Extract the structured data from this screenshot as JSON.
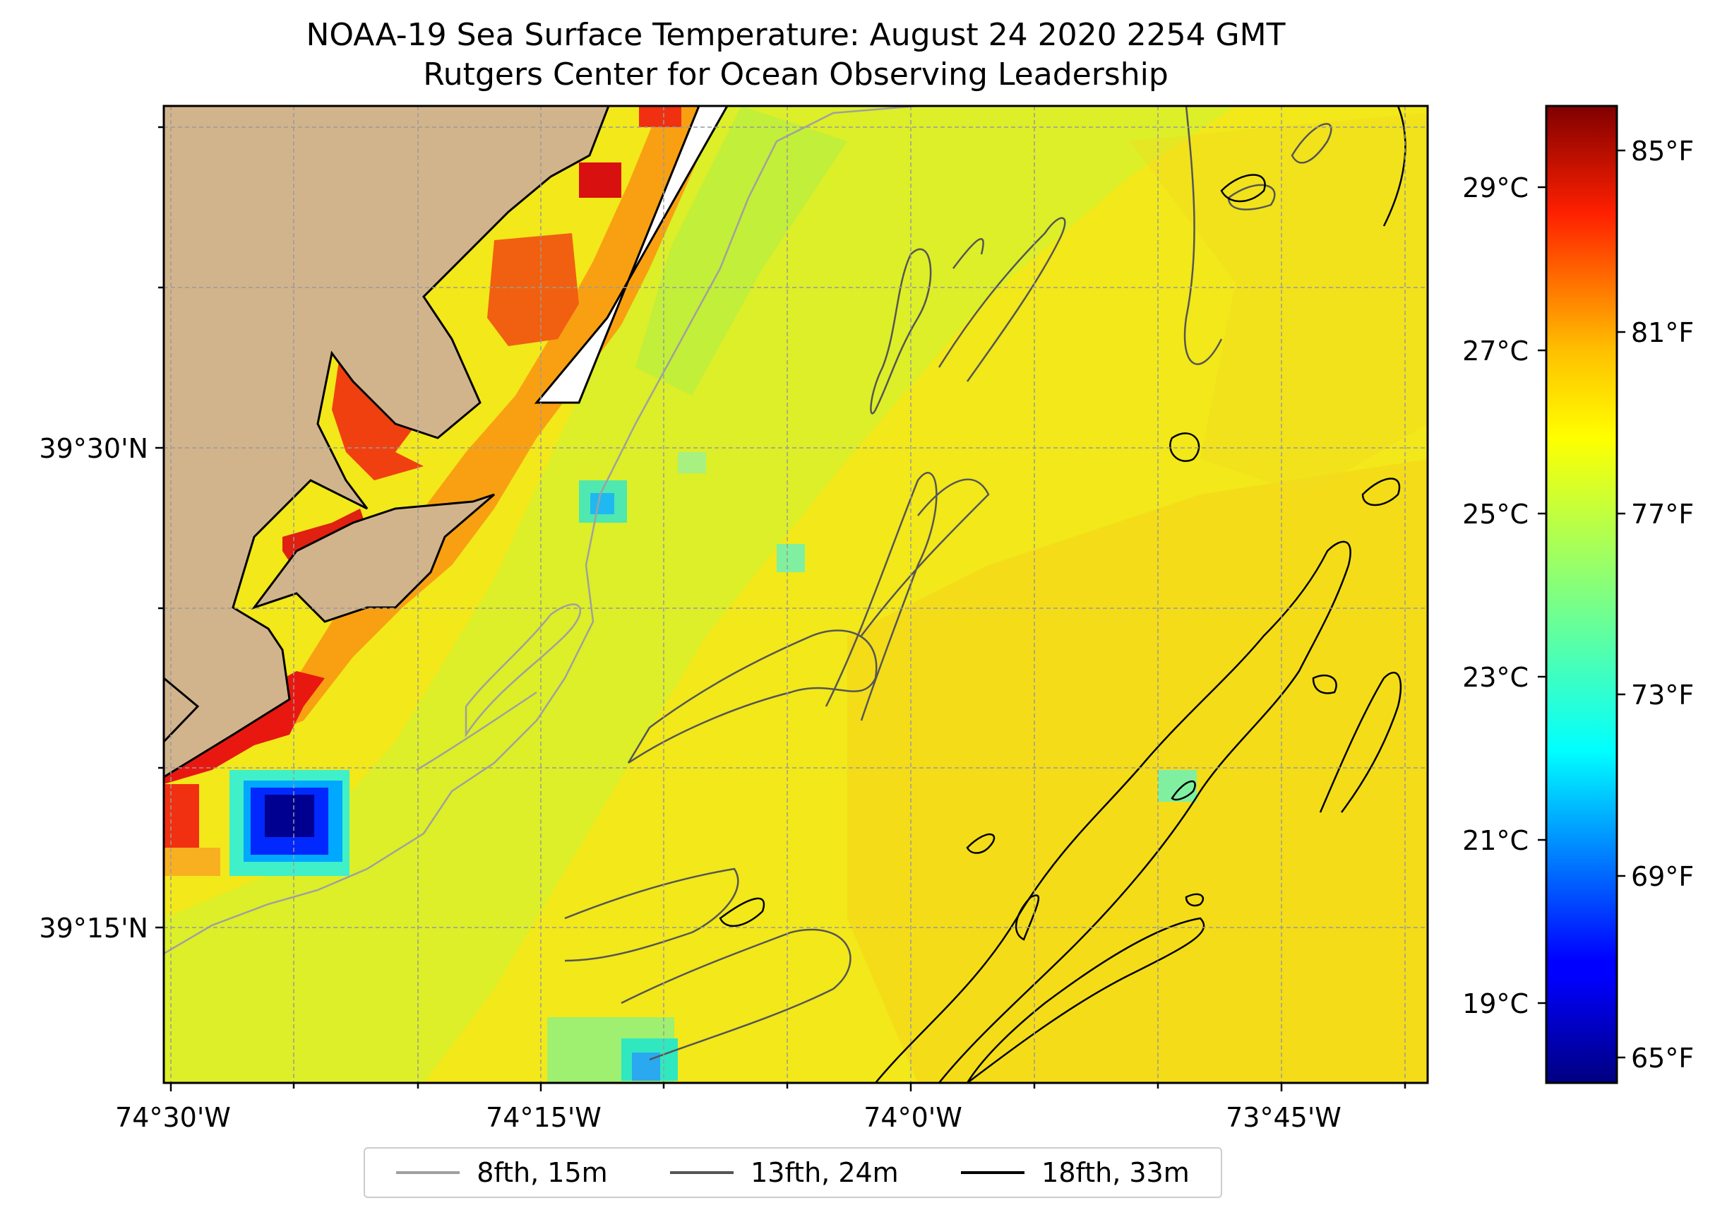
{
  "title": {
    "line1": "NOAA-19 Sea Surface Temperature: August 24 2020 2254 GMT",
    "line2": "Rutgers Center for Ocean Observing Leadership"
  },
  "map": {
    "lon_ticks": [
      "74°30'W",
      "74°15'W",
      "74°0'W",
      "73°45'W"
    ],
    "lat_ticks": [
      "39°30'N",
      "39°15'N"
    ],
    "land_color": "#d2b48c",
    "gridlines": true
  },
  "colorbar": {
    "colormap": "jet",
    "range_f": [
      64,
      86
    ],
    "celsius_ticks": [
      "29°C",
      "27°C",
      "25°C",
      "23°C",
      "21°C",
      "19°C"
    ],
    "fahrenheit_ticks": [
      "85°F",
      "81°F",
      "77°F",
      "73°F",
      "69°F",
      "65°F"
    ]
  },
  "legend": {
    "items": [
      {
        "label": "8fth, 15m",
        "color": "#a0a0a0"
      },
      {
        "label": "13fth, 24m",
        "color": "#555555"
      },
      {
        "label": "18fth, 33m",
        "color": "#000000"
      }
    ]
  }
}
